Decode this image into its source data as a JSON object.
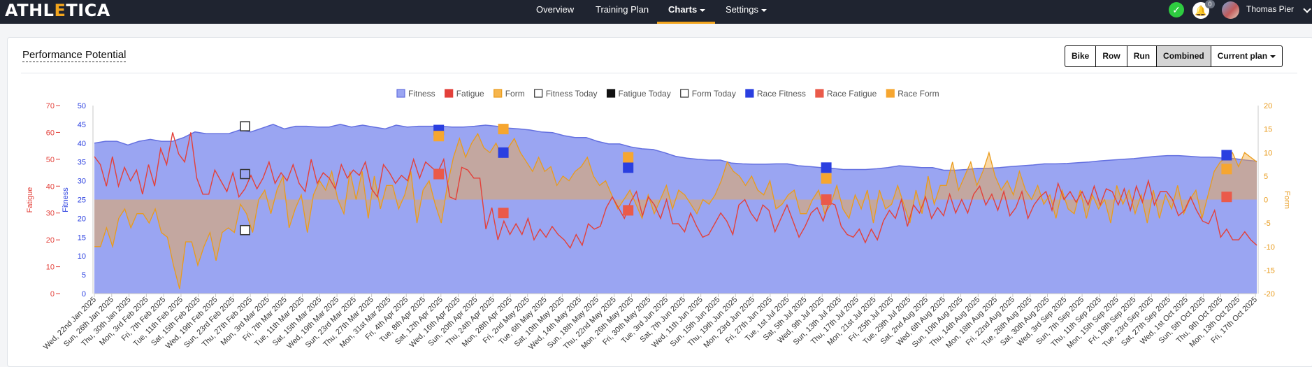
{
  "nav": {
    "logo_part1": "ATHL",
    "logo_accent": "E",
    "logo_part2": "TICA",
    "items": [
      {
        "label": "Overview",
        "active": false
      },
      {
        "label": "Training Plan",
        "active": false
      },
      {
        "label": "Charts",
        "active": true,
        "dropdown": true
      },
      {
        "label": "Settings",
        "active": false,
        "dropdown": true
      }
    ],
    "notification_count": "0",
    "user_name": "Thomas Pier",
    "icons": [
      "check-circle-icon",
      "bell-icon",
      "avatar",
      "chevron-down-icon"
    ]
  },
  "card": {
    "title": "Performance Potential",
    "buttons": [
      {
        "label": "Bike",
        "active": false
      },
      {
        "label": "Row",
        "active": false
      },
      {
        "label": "Run",
        "active": false
      },
      {
        "label": "Combined",
        "active": true
      }
    ],
    "plan_dropdown": "Current plan"
  },
  "chart_data": {
    "type": "area",
    "legend": [
      {
        "label": "Fitness",
        "color": "#9aa5f2",
        "border": "#6470e0",
        "shape": "square"
      },
      {
        "label": "Fatigue",
        "color": "#e3403a",
        "border": "#e3403a",
        "shape": "square"
      },
      {
        "label": "Form",
        "color": "#f6b54c",
        "border": "#e99b1c",
        "shape": "square"
      },
      {
        "label": "Fitness Today",
        "color": "#ffffff",
        "border": "#333333",
        "shape": "square"
      },
      {
        "label": "Fatigue Today",
        "color": "#111111",
        "border": "#111111",
        "shape": "square"
      },
      {
        "label": "Form Today",
        "color": "#ffffff",
        "border": "#333333",
        "shape": "square"
      },
      {
        "label": "Race Fitness",
        "color": "#2a3fe0",
        "border": "#2a3fe0",
        "shape": "square"
      },
      {
        "label": "Race Fatigue",
        "color": "#ea5a4a",
        "border": "#ea5a4a",
        "shape": "square"
      },
      {
        "label": "Race Form",
        "color": "#f6a630",
        "border": "#f6a630",
        "shape": "square"
      }
    ],
    "axes": {
      "fatigue": {
        "label": "Fatigue",
        "min": 0,
        "max": 70,
        "ticks": [
          0,
          10,
          20,
          30,
          40,
          50,
          60,
          70
        ],
        "color": "#e3403a",
        "side": "left-outer"
      },
      "fitness": {
        "label": "Fitness",
        "min": 0,
        "max": 50,
        "ticks": [
          0,
          5,
          10,
          15,
          20,
          25,
          30,
          35,
          40,
          45,
          50
        ],
        "color": "#2a3fe0",
        "side": "left-inner"
      },
      "form": {
        "label": "Form",
        "min": -20,
        "max": 20,
        "ticks": [
          -20,
          -15,
          -10,
          -5,
          0,
          5,
          10,
          15,
          20
        ],
        "color": "#e99b1c",
        "side": "right"
      }
    },
    "x_labels": [
      "Wed, 22nd Jan 2025",
      "Sun, 26th Jan 2025",
      "Thu, 30th Jan 2025",
      "Mon, 3rd Feb 2025",
      "Fri, 7th Feb 2025",
      "Tue, 11th Feb 2025",
      "Sat, 15th Feb 2025",
      "Wed, 19th Feb 2025",
      "Sun, 23rd Feb 2025",
      "Thu, 27th Feb 2025",
      "Mon, 3rd Mar 2025",
      "Fri, 7th Mar 2025",
      "Tue, 11th Mar 2025",
      "Sat, 15th Mar 2025",
      "Wed, 19th Mar 2025",
      "Sun, 23rd Mar 2025",
      "Thu, 27th Mar 2025",
      "Mon, 31st Mar 2025",
      "Fri, 4th Apr 2025",
      "Tue, 8th Apr 2025",
      "Sat, 12th Apr 2025",
      "Wed, 16th Apr 2025",
      "Sun, 20th Apr 2025",
      "Thu, 24th Apr 2025",
      "Mon, 28th Apr 2025",
      "Fri, 2nd May 2025",
      "Tue, 6th May 2025",
      "Sat, 10th May 2025",
      "Wed, 14th May 2025",
      "Sun, 18th May 2025",
      "Thu, 22nd May 2025",
      "Mon, 26th May 2025",
      "Fri, 30th May 2025",
      "Tue, 3rd Jun 2025",
      "Sat, 7th Jun 2025",
      "Wed, 11th Jun 2025",
      "Sun, 15th Jun 2025",
      "Thu, 19th Jun 2025",
      "Mon, 23rd Jun 2025",
      "Fri, 27th Jun 2025",
      "Tue, 1st Jul 2025",
      "Sat, 5th Jul 2025",
      "Wed, 9th Jul 2025",
      "Sun, 13th Jul 2025",
      "Thu, 17th Jul 2025",
      "Mon, 21st Jul 2025",
      "Fri, 25th Jul 2025",
      "Tue, 29th Jul 2025",
      "Sat, 2nd Aug 2025",
      "Wed, 6th Aug 2025",
      "Sun, 10th Aug 2025",
      "Thu, 14th Aug 2025",
      "Mon, 18th Aug 2025",
      "Fri, 22nd Aug 2025",
      "Tue, 26th Aug 2025",
      "Sat, 30th Aug 2025",
      "Wed, 3rd Sep 2025",
      "Sun, 7th Sep 2025",
      "Thu, 11th Sep 2025",
      "Mon, 15th Sep 2025",
      "Fri, 19th Sep 2025",
      "Tue, 23rd Sep 2025",
      "Sat, 27th Sep 2025",
      "Wed, 1st Oct 2025",
      "Sun, 5th Oct 2025",
      "Thu, 9th Oct 2025",
      "Mon, 13th Oct 2025",
      "Fri, 17th Oct 2025"
    ],
    "series": [
      {
        "name": "Fitness",
        "axis": "fitness",
        "kind": "area",
        "values": [
          40,
          40.5,
          40.5,
          39.5,
          40.5,
          41,
          40.5,
          40.5,
          41.5,
          43,
          42.5,
          42.5,
          42.5,
          43.5,
          43,
          44,
          45,
          43.8,
          44.5,
          44.5,
          44.3,
          44.3,
          45,
          44.3,
          44.8,
          44.3,
          43.8,
          44.8,
          44.3,
          44.5,
          44.5,
          44.5,
          44.3,
          44.3,
          44.5,
          44.8,
          44.5,
          44,
          43.8,
          43.5,
          43,
          42.8,
          42,
          41.5,
          41.5,
          40.5,
          39.8,
          39.8,
          39,
          38.5,
          38.3,
          37.5,
          36.5,
          36,
          35.7,
          35.5,
          35.5,
          34.7,
          34.5,
          34.4,
          34.4,
          34.5,
          34.5,
          34,
          33.8,
          33.5,
          33.3,
          33,
          33,
          33,
          33.2,
          33.5,
          34,
          33.8,
          33.5,
          33.5,
          32.8,
          32.8,
          33,
          33.3,
          33.3,
          33.5,
          33.8,
          34,
          34.2,
          34.5,
          34.5,
          34.6,
          34.8,
          35,
          35.3,
          35.5,
          35.7,
          35.9,
          36.2,
          36.5,
          36.7,
          36.7,
          36.5,
          36.3,
          36.3,
          36,
          35.9,
          35.5,
          35.2
        ]
      },
      {
        "name": "Fatigue",
        "axis": "fatigue",
        "kind": "line",
        "values": [
          51,
          48,
          40,
          51,
          40,
          47,
          42,
          46,
          37,
          48,
          40,
          54,
          48,
          60,
          52,
          49,
          60,
          43,
          37,
          37,
          46,
          42,
          38,
          45,
          36,
          39,
          44,
          39,
          43,
          49,
          41,
          45,
          42,
          48,
          41,
          38,
          50,
          41,
          45,
          43,
          39,
          48,
          43,
          46,
          44,
          49,
          39,
          36,
          48,
          45,
          41,
          44,
          42,
          50,
          43,
          49,
          47,
          45,
          50,
          36,
          35,
          47,
          46,
          43,
          43,
          24,
          32,
          20,
          27,
          22,
          26,
          22,
          28,
          20,
          24,
          21,
          25,
          22,
          20,
          17,
          22,
          18,
          26,
          24,
          25,
          32,
          36,
          32,
          28,
          34,
          38,
          29,
          36,
          33,
          28,
          35,
          26,
          26,
          23,
          30,
          25,
          21,
          22,
          26,
          30,
          27,
          22,
          33,
          35,
          30,
          27,
          33,
          31,
          23,
          28,
          33,
          27,
          21,
          25,
          30,
          32,
          27,
          34,
          33,
          25,
          22,
          21,
          24,
          19,
          24,
          20,
          27,
          31,
          28,
          35,
          25,
          33,
          30,
          36,
          28,
          32,
          29,
          37,
          30,
          35,
          30,
          37,
          40,
          33,
          37,
          31,
          38,
          29,
          32,
          38,
          28,
          33,
          36,
          38,
          31,
          41,
          35,
          38,
          34,
          38,
          33,
          40,
          33,
          39,
          38,
          33,
          39,
          31,
          40,
          34,
          42,
          33,
          38,
          38,
          35,
          29,
          31,
          36,
          31,
          27,
          26,
          31,
          21,
          24,
          20,
          20,
          23,
          20,
          18
        ]
      },
      {
        "name": "Form",
        "axis": "form",
        "kind": "area",
        "values": [
          -10,
          -10,
          -6,
          -10,
          -4,
          -2,
          -6,
          -3,
          -3,
          -5,
          -2,
          -7,
          -8,
          -14,
          -19,
          -9,
          -9,
          -14,
          -10,
          -7,
          -13,
          -7,
          -6,
          -7,
          -1,
          -3,
          -7,
          0,
          2,
          -3,
          2,
          5,
          -6,
          -2,
          1,
          -7,
          1,
          4,
          2,
          6,
          0,
          -3,
          6,
          0,
          6,
          -4,
          5,
          -2,
          3,
          3,
          -2,
          1,
          6,
          -5,
          2,
          4,
          -1,
          -5,
          3,
          9,
          13,
          9,
          12,
          14,
          11,
          10,
          12,
          9,
          11,
          13,
          10,
          8,
          6,
          9,
          6,
          7,
          3,
          5,
          4,
          6,
          7,
          9,
          5,
          3,
          4,
          1,
          -2,
          0,
          2,
          -1,
          -4,
          1,
          -3,
          0,
          3,
          -2,
          2,
          1,
          -1,
          -3,
          0,
          -1,
          1,
          4,
          8,
          6,
          5,
          3,
          5,
          2,
          1,
          4,
          -2,
          -1,
          1,
          2,
          -3,
          -3,
          0,
          2,
          -3,
          -1,
          3,
          -2,
          -4,
          1,
          -2,
          2,
          -5,
          2,
          -2,
          -1,
          3,
          -1,
          -5,
          2,
          -3,
          5,
          -1,
          3,
          3,
          8,
          2,
          5,
          8,
          3,
          6,
          10,
          5,
          2,
          4,
          1,
          6,
          2,
          0,
          3,
          -1,
          1,
          -4,
          2,
          -2,
          -3,
          2,
          -4,
          1,
          -2,
          0,
          -5,
          3,
          -1,
          2,
          -3,
          1,
          -5,
          2,
          -4,
          1,
          -2,
          3,
          -3,
          0,
          2,
          -4,
          1,
          6,
          8,
          9,
          10,
          7,
          10,
          9,
          8
        ]
      }
    ],
    "markers": [
      {
        "name": "Fitness Today",
        "axis": "fitness",
        "date": "Wed, 26th Feb 2025",
        "value": 44.5
      },
      {
        "name": "Fatigue Today",
        "axis": "fatigue",
        "date": "Wed, 26th Feb 2025",
        "value": 44.5
      },
      {
        "name": "Form Today",
        "axis": "form",
        "date": "Wed, 26th Feb 2025",
        "value": -6.5
      },
      {
        "name": "Race Fitness",
        "axis": "fitness",
        "date": "Sat, 12th Apr 2025",
        "value": 43.5
      },
      {
        "name": "Race Fatigue",
        "axis": "fatigue",
        "date": "Sat, 12th Apr 2025",
        "value": 44.5
      },
      {
        "name": "Race Form",
        "axis": "form",
        "date": "Sat, 12th Apr 2025",
        "value": 13.5
      },
      {
        "name": "Race Fitness",
        "axis": "fitness",
        "date": "Sun, 27th Apr 2025",
        "value": 37.5
      },
      {
        "name": "Race Fatigue",
        "axis": "fatigue",
        "date": "Sun, 27th Apr 2025",
        "value": 30
      },
      {
        "name": "Race Form",
        "axis": "form",
        "date": "Sun, 27th Apr 2025",
        "value": 15
      },
      {
        "name": "Race Fitness",
        "axis": "fitness",
        "date": "Mon, 26th May 2025",
        "value": 33.5
      },
      {
        "name": "Race Fatigue",
        "axis": "fatigue",
        "date": "Mon, 26th May 2025",
        "value": 31
      },
      {
        "name": "Race Form",
        "axis": "form",
        "date": "Mon, 26th May 2025",
        "value": 9
      },
      {
        "name": "Race Fitness",
        "axis": "fitness",
        "date": "Fri, 11th Jul 2025",
        "value": 33.5
      },
      {
        "name": "Race Fatigue",
        "axis": "fatigue",
        "date": "Fri, 11th Jul 2025",
        "value": 35
      },
      {
        "name": "Race Form",
        "axis": "form",
        "date": "Fri, 11th Jul 2025",
        "value": 4.5
      },
      {
        "name": "Race Fitness",
        "axis": "fitness",
        "date": "Sun, 12th Oct 2025",
        "value": 36.8
      },
      {
        "name": "Race Fatigue",
        "axis": "fatigue",
        "date": "Sun, 12th Oct 2025",
        "value": 36
      },
      {
        "name": "Race Form",
        "axis": "form",
        "date": "Sun, 12th Oct 2025",
        "value": 6.5
      }
    ],
    "grid": false,
    "legend_position": "top-center"
  }
}
